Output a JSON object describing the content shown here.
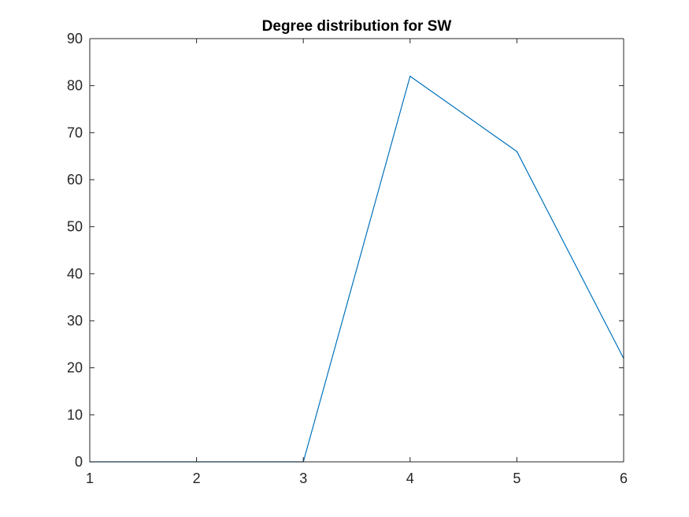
{
  "chart_data": {
    "type": "line",
    "title": "Degree distribution for SW",
    "xlabel": "",
    "ylabel": "",
    "xlim": [
      1,
      6
    ],
    "ylim": [
      0,
      90
    ],
    "xticks": [
      1,
      2,
      3,
      4,
      5,
      6
    ],
    "yticks": [
      0,
      10,
      20,
      30,
      40,
      50,
      60,
      70,
      80,
      90
    ],
    "grid": false,
    "legend": "none",
    "series": [
      {
        "x": [
          1,
          2,
          3,
          4,
          5,
          6
        ],
        "values": [
          0,
          0,
          0,
          82,
          66,
          22
        ],
        "color": "#0072BD"
      }
    ]
  }
}
